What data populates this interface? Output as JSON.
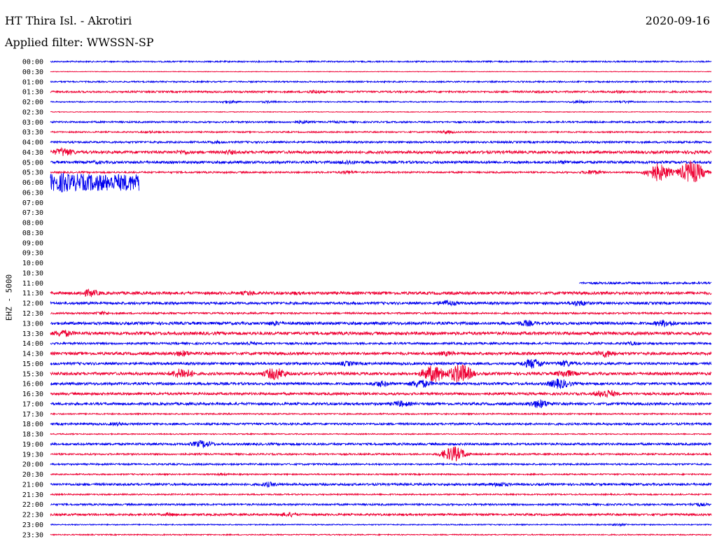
{
  "header": {
    "station": "HT Thira Isl. - Akrotiri",
    "date": "2020-09-16",
    "filter": "Applied filter: WWSSN-SP"
  },
  "colors": {
    "blue": "#0000ee",
    "red": "#ee0033"
  },
  "chart_data": {
    "type": "line",
    "ylabel": "EHZ - 5000",
    "row_labels": [
      "00:00",
      "00:30",
      "01:00",
      "01:30",
      "02:00",
      "02:30",
      "03:00",
      "03:30",
      "04:00",
      "04:30",
      "05:00",
      "05:30",
      "06:00",
      "06:30",
      "07:00",
      "07:30",
      "08:00",
      "08:30",
      "09:00",
      "09:30",
      "10:00",
      "10:30",
      "11:00",
      "11:30",
      "12:00",
      "12:30",
      "13:00",
      "13:30",
      "14:00",
      "14:30",
      "15:00",
      "15:30",
      "16:00",
      "16:30",
      "17:00",
      "17:30",
      "18:00",
      "18:30",
      "19:00",
      "19:30",
      "20:00",
      "20:30",
      "21:00",
      "21:30",
      "22:00",
      "22:30",
      "23:00",
      "23:30"
    ],
    "row_minutes": 30,
    "series": [
      {
        "row": 0,
        "start": 0,
        "end": 1,
        "noise": 1.0,
        "bursts": []
      },
      {
        "row": 1,
        "start": 0,
        "end": 1,
        "noise": 0.4,
        "bursts": []
      },
      {
        "row": 2,
        "start": 0,
        "end": 1,
        "noise": 1.0,
        "bursts": []
      },
      {
        "row": 3,
        "start": 0,
        "end": 1,
        "noise": 1.3,
        "bursts": [
          [
            0.4,
            3
          ],
          [
            0.74,
            2
          ],
          [
            0.86,
            2.5
          ]
        ]
      },
      {
        "row": 4,
        "start": 0,
        "end": 1,
        "noise": 0.8,
        "bursts": [
          [
            0.27,
            2.5
          ],
          [
            0.33,
            2
          ],
          [
            0.8,
            2.5
          ],
          [
            0.87,
            2
          ]
        ]
      },
      {
        "row": 5,
        "start": 0,
        "end": 1,
        "noise": 0.5,
        "bursts": []
      },
      {
        "row": 6,
        "start": 0,
        "end": 1,
        "noise": 1.2,
        "bursts": [
          [
            0.38,
            3
          ],
          [
            0.43,
            2
          ]
        ]
      },
      {
        "row": 7,
        "start": 0,
        "end": 1,
        "noise": 1.0,
        "bursts": [
          [
            0.15,
            2
          ],
          [
            0.6,
            2.5
          ]
        ]
      },
      {
        "row": 8,
        "start": 0,
        "end": 1,
        "noise": 1.4,
        "bursts": [
          [
            0.25,
            2.5
          ],
          [
            0.93,
            2
          ]
        ]
      },
      {
        "row": 9,
        "start": 0,
        "end": 1,
        "noise": 2.0,
        "bursts": [
          [
            0.02,
            7
          ],
          [
            0.2,
            4
          ],
          [
            0.27,
            4
          ],
          [
            0.97,
            3
          ]
        ]
      },
      {
        "row": 10,
        "start": 0,
        "end": 1,
        "noise": 1.8,
        "bursts": [
          [
            0.07,
            3
          ],
          [
            0.45,
            4
          ],
          [
            0.78,
            3
          ]
        ]
      },
      {
        "row": 11,
        "start": 0,
        "end": 1,
        "noise": 1.2,
        "bursts": [
          [
            0.45,
            3
          ],
          [
            0.82,
            4
          ],
          [
            0.92,
            14
          ],
          [
            0.97,
            18
          ]
        ]
      },
      {
        "row": 12,
        "start": 0,
        "end": 0.134,
        "noise": 12,
        "bursts": [
          [
            0.02,
            16
          ]
        ]
      },
      {
        "row": 22,
        "start": 0.8,
        "end": 1,
        "noise": 1.5,
        "bursts": []
      },
      {
        "row": 23,
        "start": 0,
        "end": 1,
        "noise": 2.0,
        "bursts": [
          [
            0.06,
            6
          ],
          [
            0.3,
            4
          ],
          [
            0.37,
            3
          ]
        ]
      },
      {
        "row": 24,
        "start": 0,
        "end": 1,
        "noise": 1.8,
        "bursts": [
          [
            0.6,
            5
          ],
          [
            0.8,
            5
          ]
        ]
      },
      {
        "row": 25,
        "start": 0,
        "end": 1,
        "noise": 1.3,
        "bursts": [
          [
            0.08,
            3
          ]
        ]
      },
      {
        "row": 26,
        "start": 0,
        "end": 1,
        "noise": 2.0,
        "bursts": [
          [
            0.34,
            4
          ],
          [
            0.72,
            5
          ],
          [
            0.93,
            6
          ]
        ]
      },
      {
        "row": 27,
        "start": 0,
        "end": 1,
        "noise": 2.2,
        "bursts": [
          [
            0.02,
            6
          ]
        ]
      },
      {
        "row": 28,
        "start": 0,
        "end": 1,
        "noise": 1.5,
        "bursts": [
          [
            0.3,
            3
          ],
          [
            0.88,
            3
          ]
        ]
      },
      {
        "row": 29,
        "start": 0,
        "end": 1,
        "noise": 2.0,
        "bursts": [
          [
            0.2,
            5
          ],
          [
            0.6,
            4
          ],
          [
            0.84,
            6
          ]
        ]
      },
      {
        "row": 30,
        "start": 0,
        "end": 1,
        "noise": 1.8,
        "bursts": [
          [
            0.45,
            4
          ],
          [
            0.73,
            8
          ],
          [
            0.78,
            5
          ]
        ]
      },
      {
        "row": 31,
        "start": 0,
        "end": 1,
        "noise": 2.0,
        "bursts": [
          [
            0.2,
            9
          ],
          [
            0.34,
            10
          ],
          [
            0.58,
            14
          ],
          [
            0.62,
            16
          ],
          [
            0.78,
            6
          ]
        ]
      },
      {
        "row": 32,
        "start": 0,
        "end": 1,
        "noise": 1.8,
        "bursts": [
          [
            0.5,
            5
          ],
          [
            0.56,
            7
          ],
          [
            0.77,
            8
          ]
        ]
      },
      {
        "row": 33,
        "start": 0,
        "end": 1,
        "noise": 1.8,
        "bursts": [
          [
            0.84,
            7
          ]
        ]
      },
      {
        "row": 34,
        "start": 0,
        "end": 1,
        "noise": 1.8,
        "bursts": [
          [
            0.53,
            5
          ],
          [
            0.74,
            7
          ]
        ]
      },
      {
        "row": 35,
        "start": 0,
        "end": 1,
        "noise": 1.0,
        "bursts": []
      },
      {
        "row": 36,
        "start": 0,
        "end": 1,
        "noise": 1.5,
        "bursts": [
          [
            0.1,
            3
          ]
        ]
      },
      {
        "row": 37,
        "start": 0,
        "end": 1,
        "noise": 0.8,
        "bursts": []
      },
      {
        "row": 38,
        "start": 0,
        "end": 1,
        "noise": 1.6,
        "bursts": [
          [
            0.23,
            6
          ]
        ]
      },
      {
        "row": 39,
        "start": 0,
        "end": 1,
        "noise": 1.2,
        "bursts": [
          [
            0.61,
            12
          ]
        ]
      },
      {
        "row": 40,
        "start": 0,
        "end": 1,
        "noise": 1.2,
        "bursts": []
      },
      {
        "row": 41,
        "start": 0,
        "end": 1,
        "noise": 1.0,
        "bursts": [
          [
            0.26,
            2
          ]
        ]
      },
      {
        "row": 42,
        "start": 0,
        "end": 1,
        "noise": 1.6,
        "bursts": [
          [
            0.33,
            4
          ],
          [
            0.68,
            4
          ]
        ]
      },
      {
        "row": 43,
        "start": 0,
        "end": 1,
        "noise": 1.0,
        "bursts": []
      },
      {
        "row": 44,
        "start": 0,
        "end": 1,
        "noise": 1.3,
        "bursts": [
          [
            0.98,
            3
          ]
        ]
      },
      {
        "row": 45,
        "start": 0,
        "end": 1,
        "noise": 1.5,
        "bursts": [
          [
            0.18,
            3
          ],
          [
            0.36,
            4
          ]
        ]
      },
      {
        "row": 46,
        "start": 0,
        "end": 1,
        "noise": 0.8,
        "bursts": [
          [
            0.86,
            2
          ]
        ]
      },
      {
        "row": 47,
        "start": 0,
        "end": 1,
        "noise": 0.8,
        "bursts": []
      }
    ]
  }
}
